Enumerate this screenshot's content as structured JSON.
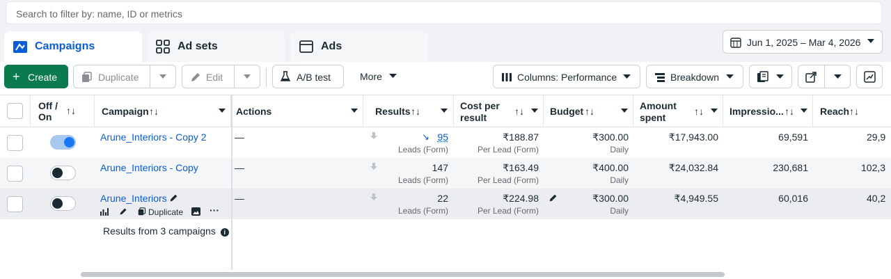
{
  "search": {
    "placeholder": "Search to filter by: name, ID or metrics"
  },
  "tabs": [
    {
      "label": "Campaigns",
      "active": true,
      "icon": "folder-chart-icon"
    },
    {
      "label": "Ad sets",
      "active": false,
      "icon": "grid-icon"
    },
    {
      "label": "Ads",
      "active": false,
      "icon": "ad-square-icon"
    }
  ],
  "date_range": "Jun 1, 2025 – Mar 4, 2026",
  "toolbar": {
    "create": "Create",
    "duplicate": "Duplicate",
    "edit": "Edit",
    "ab_test": "A/B test",
    "more": "More",
    "columns": "Columns: Performance",
    "breakdown": "Breakdown"
  },
  "table": {
    "headers": {
      "off_on": "Off / On",
      "campaign": "Campaign",
      "actions": "Actions",
      "results": "Results",
      "cost": "Cost per result",
      "budget": "Budget",
      "amount": "Amount spent",
      "impressions": "Impressio...",
      "reach": "Reach"
    },
    "rows": [
      {
        "name": "Arune_Interiors - Copy 2",
        "on": true,
        "actions": "—",
        "results": "95",
        "results_sub": "Leads (Form)",
        "cost": "₹188.87",
        "cost_sub": "Per Lead (Form)",
        "budget": "₹300.00",
        "budget_sub": "Daily",
        "amount": "₹17,943.00",
        "impressions": "69,591",
        "reach": "29,9"
      },
      {
        "name": "Arune_Interiors - Copy",
        "on": false,
        "actions": "—",
        "results": "147",
        "results_sub": "Leads (Form)",
        "cost": "₹163.49",
        "cost_sub": "Per Lead (Form)",
        "budget": "₹400.00",
        "budget_sub": "Daily",
        "amount": "₹24,032.84",
        "impressions": "230,681",
        "reach": "102,3"
      },
      {
        "name": "Arune_Interiors",
        "on": false,
        "actions": "—",
        "results": "22",
        "results_sub": "Leads (Form)",
        "cost": "₹224.98",
        "cost_sub": "Per Lead (Form)",
        "budget": "₹300.00",
        "budget_sub": "Daily",
        "amount": "₹4,949.55",
        "impressions": "60,016",
        "reach": "40,2"
      }
    ],
    "row_actions": {
      "duplicate": "Duplicate"
    },
    "footer": "Results from 3 campaigns"
  },
  "colors": {
    "accent": "#0a5cd8",
    "create": "#0a7b4f",
    "toggle_on": "#1877f2"
  }
}
